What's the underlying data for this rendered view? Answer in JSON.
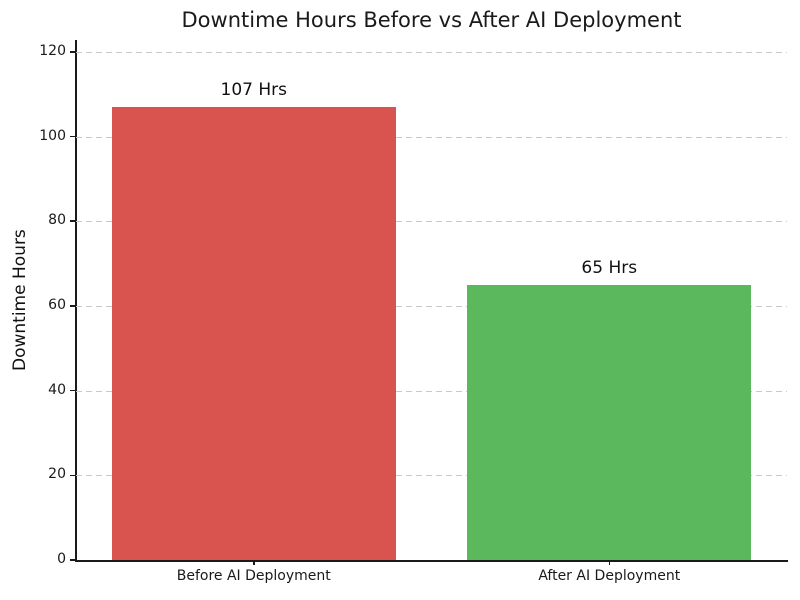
{
  "chart_data": {
    "type": "bar",
    "title": "Downtime Hours Before vs After AI Deployment",
    "categories": [
      "Before AI Deployment",
      "After AI Deployment"
    ],
    "values": [
      107,
      65
    ],
    "value_labels": [
      "107 Hrs",
      "65 Hrs"
    ],
    "bar_colors": [
      "#d9534f",
      "#5cb85c"
    ],
    "xlabel": "",
    "ylabel": "Downtime Hours",
    "ylim": [
      0,
      122.8
    ],
    "yticks": [
      0,
      20,
      40,
      60,
      80,
      100,
      120
    ],
    "grid": "horizontal-dashed",
    "legend": "none"
  },
  "colors": {
    "grid": "#c9c9c9",
    "spine": "#1a1a1a",
    "text": "#1a1a1a",
    "background": "#ffffff"
  }
}
